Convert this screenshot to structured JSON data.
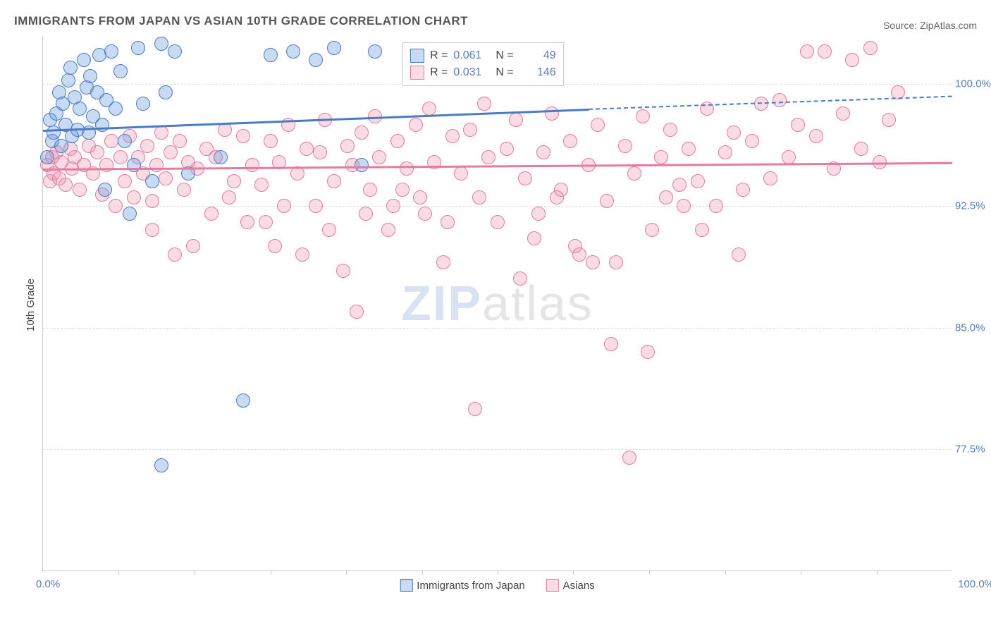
{
  "title": "IMMIGRANTS FROM JAPAN VS ASIAN 10TH GRADE CORRELATION CHART",
  "source": "Source: ZipAtlas.com",
  "ylabel": "10th Grade",
  "watermark": {
    "part1": "ZIP",
    "part2": "atlas"
  },
  "chart": {
    "type": "scatter",
    "xlim": [
      0,
      100
    ],
    "ylim": [
      70,
      103
    ],
    "yticks": [
      {
        "v": 100.0,
        "label": "100.0%"
      },
      {
        "v": 92.5,
        "label": "92.5%"
      },
      {
        "v": 85.0,
        "label": "85.0%"
      },
      {
        "v": 77.5,
        "label": "77.5%"
      }
    ],
    "xticks_minor": [
      8.3,
      16.7,
      25,
      33.3,
      41.7,
      50,
      58.3,
      66.7,
      75,
      83.3,
      91.7
    ],
    "xlabel_start": "0.0%",
    "xlabel_end": "100.0%",
    "point_radius": 10,
    "series": [
      {
        "name": "Immigrants from Japan",
        "color_fill": "rgba(100,150,220,0.35)",
        "color_stroke": "#4a7bc8",
        "R": "0.061",
        "N": "49",
        "trend": {
          "x1": 0,
          "y1": 97.2,
          "x2": 60,
          "y2": 98.5,
          "x2_dash": 100,
          "y2_dash": 99.3
        },
        "points": [
          [
            0.5,
            95.5
          ],
          [
            0.8,
            97.8
          ],
          [
            1.0,
            96.5
          ],
          [
            1.2,
            97.0
          ],
          [
            1.5,
            98.2
          ],
          [
            1.8,
            99.5
          ],
          [
            2.0,
            96.2
          ],
          [
            2.2,
            98.8
          ],
          [
            2.5,
            97.5
          ],
          [
            2.8,
            100.2
          ],
          [
            3.0,
            101.0
          ],
          [
            3.2,
            96.8
          ],
          [
            3.5,
            99.2
          ],
          [
            3.8,
            97.2
          ],
          [
            4.0,
            98.5
          ],
          [
            4.5,
            101.5
          ],
          [
            4.8,
            99.8
          ],
          [
            5.0,
            97.0
          ],
          [
            5.2,
            100.5
          ],
          [
            5.5,
            98.0
          ],
          [
            6.0,
            99.5
          ],
          [
            6.2,
            101.8
          ],
          [
            6.5,
            97.5
          ],
          [
            7.0,
            99.0
          ],
          [
            7.5,
            102.0
          ],
          [
            8.0,
            98.5
          ],
          [
            8.5,
            100.8
          ],
          [
            9.0,
            96.5
          ],
          [
            10.0,
            95.0
          ],
          [
            10.5,
            102.2
          ],
          [
            11.0,
            98.8
          ],
          [
            12.0,
            94.0
          ],
          [
            13.0,
            102.5
          ],
          [
            13.5,
            99.5
          ],
          [
            14.5,
            102.0
          ],
          [
            16.0,
            94.5
          ],
          [
            19.5,
            95.5
          ],
          [
            25.0,
            101.8
          ],
          [
            27.5,
            102.0
          ],
          [
            30.0,
            101.5
          ],
          [
            32.0,
            102.2
          ],
          [
            35.0,
            95.0
          ],
          [
            36.5,
            102.0
          ],
          [
            41.0,
            101.8
          ],
          [
            45.0,
            102.0
          ],
          [
            13.0,
            76.5
          ],
          [
            22.0,
            80.5
          ],
          [
            9.5,
            92.0
          ],
          [
            6.8,
            93.5
          ]
        ]
      },
      {
        "name": "Asians",
        "color_fill": "rgba(240,140,170,0.30)",
        "color_stroke": "#e67aa0",
        "R": "0.031",
        "N": "146",
        "trend": {
          "x1": 0,
          "y1": 94.8,
          "x2": 100,
          "y2": 95.2
        },
        "points": [
          [
            0.5,
            95.0
          ],
          [
            0.8,
            94.0
          ],
          [
            1.0,
            95.5
          ],
          [
            1.2,
            94.5
          ],
          [
            1.5,
            95.8
          ],
          [
            1.8,
            94.2
          ],
          [
            2.0,
            95.2
          ],
          [
            2.5,
            93.8
          ],
          [
            3.0,
            96.0
          ],
          [
            3.2,
            94.8
          ],
          [
            3.5,
            95.5
          ],
          [
            4.0,
            93.5
          ],
          [
            4.5,
            95.0
          ],
          [
            5.0,
            96.2
          ],
          [
            5.5,
            94.5
          ],
          [
            6.0,
            95.8
          ],
          [
            6.5,
            93.2
          ],
          [
            7.0,
            95.0
          ],
          [
            7.5,
            96.5
          ],
          [
            8.0,
            92.5
          ],
          [
            8.5,
            95.5
          ],
          [
            9.0,
            94.0
          ],
          [
            9.5,
            96.8
          ],
          [
            10.0,
            93.0
          ],
          [
            10.5,
            95.5
          ],
          [
            11.0,
            94.5
          ],
          [
            11.5,
            96.2
          ],
          [
            12.0,
            92.8
          ],
          [
            12.5,
            95.0
          ],
          [
            13.0,
            97.0
          ],
          [
            13.5,
            94.2
          ],
          [
            14.0,
            95.8
          ],
          [
            14.5,
            89.5
          ],
          [
            15.0,
            96.5
          ],
          [
            15.5,
            93.5
          ],
          [
            16.0,
            95.2
          ],
          [
            17.0,
            94.8
          ],
          [
            18.0,
            96.0
          ],
          [
            18.5,
            92.0
          ],
          [
            19.0,
            95.5
          ],
          [
            20.0,
            97.2
          ],
          [
            21.0,
            94.0
          ],
          [
            22.0,
            96.8
          ],
          [
            22.5,
            91.5
          ],
          [
            23.0,
            95.0
          ],
          [
            24.0,
            93.8
          ],
          [
            25.0,
            96.5
          ],
          [
            25.5,
            90.0
          ],
          [
            26.0,
            95.2
          ],
          [
            27.0,
            97.5
          ],
          [
            28.0,
            94.5
          ],
          [
            29.0,
            96.0
          ],
          [
            30.0,
            92.5
          ],
          [
            30.5,
            95.8
          ],
          [
            31.0,
            97.8
          ],
          [
            32.0,
            94.0
          ],
          [
            33.0,
            88.5
          ],
          [
            33.5,
            96.2
          ],
          [
            34.0,
            95.0
          ],
          [
            35.0,
            97.0
          ],
          [
            36.0,
            93.5
          ],
          [
            36.5,
            98.0
          ],
          [
            37.0,
            95.5
          ],
          [
            38.0,
            91.0
          ],
          [
            39.0,
            96.5
          ],
          [
            40.0,
            94.8
          ],
          [
            41.0,
            97.5
          ],
          [
            42.0,
            92.0
          ],
          [
            42.5,
            98.5
          ],
          [
            43.0,
            95.2
          ],
          [
            44.0,
            89.0
          ],
          [
            45.0,
            96.8
          ],
          [
            46.0,
            94.5
          ],
          [
            47.0,
            97.2
          ],
          [
            48.0,
            93.0
          ],
          [
            48.5,
            98.8
          ],
          [
            49.0,
            95.5
          ],
          [
            50.0,
            91.5
          ],
          [
            51.0,
            96.0
          ],
          [
            52.0,
            97.8
          ],
          [
            53.0,
            94.2
          ],
          [
            54.0,
            90.5
          ],
          [
            55.0,
            95.8
          ],
          [
            56.0,
            98.2
          ],
          [
            57.0,
            93.5
          ],
          [
            58.0,
            96.5
          ],
          [
            59.0,
            89.5
          ],
          [
            60.0,
            95.0
          ],
          [
            61.0,
            97.5
          ],
          [
            62.0,
            92.8
          ],
          [
            63.0,
            89.0
          ],
          [
            64.0,
            96.2
          ],
          [
            65.0,
            94.5
          ],
          [
            66.0,
            98.0
          ],
          [
            67.0,
            91.0
          ],
          [
            68.0,
            95.5
          ],
          [
            69.0,
            97.2
          ],
          [
            70.0,
            93.8
          ],
          [
            71.0,
            96.0
          ],
          [
            72.0,
            94.0
          ],
          [
            73.0,
            98.5
          ],
          [
            74.0,
            92.5
          ],
          [
            75.0,
            95.8
          ],
          [
            76.0,
            97.0
          ],
          [
            77.0,
            93.5
          ],
          [
            78.0,
            96.5
          ],
          [
            79.0,
            98.8
          ],
          [
            80.0,
            94.2
          ],
          [
            81.0,
            99.0
          ],
          [
            82.0,
            95.5
          ],
          [
            83.0,
            97.5
          ],
          [
            84.0,
            102.0
          ],
          [
            85.0,
            96.8
          ],
          [
            86.0,
            102.0
          ],
          [
            87.0,
            94.8
          ],
          [
            88.0,
            98.2
          ],
          [
            89.0,
            101.5
          ],
          [
            90.0,
            96.0
          ],
          [
            91.0,
            102.2
          ],
          [
            92.0,
            95.2
          ],
          [
            93.0,
            97.8
          ],
          [
            94.0,
            99.5
          ],
          [
            12.0,
            91.0
          ],
          [
            16.5,
            90.0
          ],
          [
            24.5,
            91.5
          ],
          [
            28.5,
            89.5
          ],
          [
            34.5,
            86.0
          ],
          [
            38.5,
            92.5
          ],
          [
            44.5,
            91.5
          ],
          [
            52.5,
            88.0
          ],
          [
            58.5,
            90.0
          ],
          [
            60.5,
            89.0
          ],
          [
            62.5,
            84.0
          ],
          [
            64.5,
            77.0
          ],
          [
            66.5,
            83.5
          ],
          [
            72.5,
            91.0
          ],
          [
            76.5,
            89.5
          ],
          [
            68.5,
            93.0
          ],
          [
            39.5,
            93.5
          ],
          [
            47.5,
            80.0
          ],
          [
            31.5,
            91.0
          ],
          [
            54.5,
            92.0
          ],
          [
            56.5,
            93.0
          ],
          [
            70.5,
            92.5
          ],
          [
            41.5,
            93.0
          ],
          [
            35.5,
            92.0
          ],
          [
            26.5,
            92.5
          ],
          [
            20.5,
            93.0
          ]
        ]
      }
    ]
  },
  "legend_bottom": [
    {
      "label": "Immigrants from Japan",
      "fill": "rgba(100,150,220,0.35)",
      "stroke": "#4a7bc8"
    },
    {
      "label": "Asians",
      "fill": "rgba(240,140,170,0.30)",
      "stroke": "#e67aa0"
    }
  ]
}
